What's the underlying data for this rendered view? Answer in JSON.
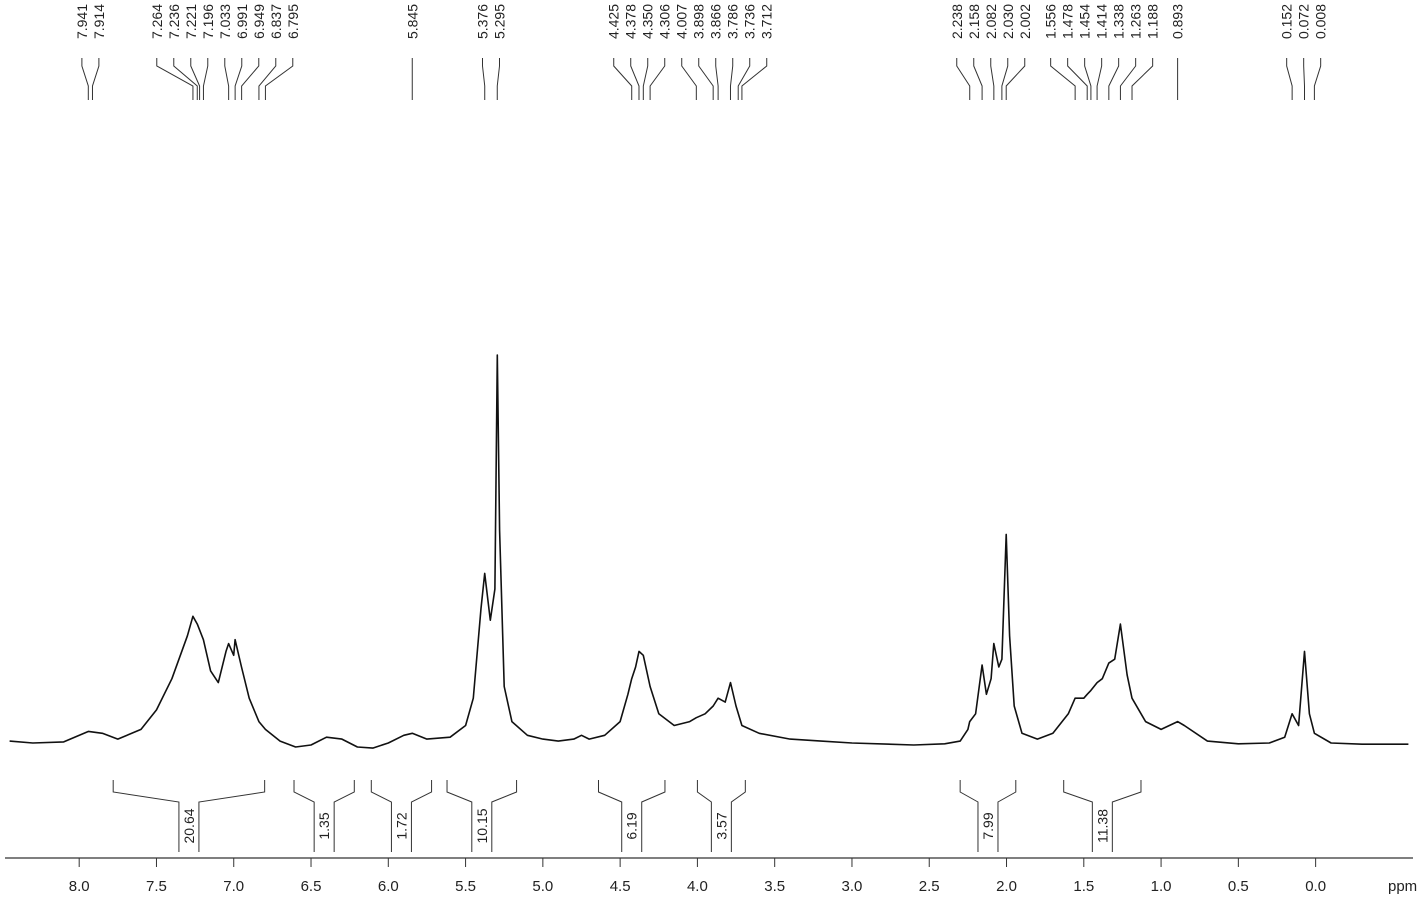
{
  "chart_data": {
    "type": "line",
    "x_label": "ppm",
    "xlim": [
      8.48,
      -0.63
    ],
    "ylim": [
      0,
      100
    ],
    "color": "#111111",
    "xticks": [
      {
        "value": 8,
        "label": "8.0"
      },
      7.5,
      {
        "value": 7,
        "label": "7.0"
      },
      6.5,
      {
        "value": 6,
        "label": "6.0"
      },
      5.5,
      {
        "value": 5,
        "label": "5.0"
      },
      4.5,
      {
        "value": 4,
        "label": "4.0"
      },
      3.5,
      {
        "value": 3,
        "label": "3.0"
      },
      2.5,
      {
        "value": 2,
        "label": "2.0"
      },
      1.5,
      {
        "value": 1,
        "label": "1.0"
      },
      0.5,
      {
        "value": 0,
        "label": "0.0"
      }
    ],
    "series": [
      {
        "x": [
          8.45,
          8.3,
          8.1,
          7.94,
          7.85,
          7.75,
          7.6,
          7.5,
          7.4,
          7.3,
          7.264,
          7.236,
          7.196,
          7.15,
          7.1,
          7.05,
          7.033,
          7.0,
          6.991,
          6.95,
          6.9,
          6.837,
          6.795,
          6.7,
          6.6,
          6.5,
          6.4,
          6.3,
          6.2,
          6.1,
          6.0,
          5.9,
          5.845,
          5.75,
          5.6,
          5.5,
          5.45,
          5.4,
          5.376,
          5.34,
          5.31,
          5.295,
          5.28,
          5.25,
          5.2,
          5.1,
          5.0,
          4.9,
          4.8,
          4.75,
          4.7,
          4.6,
          4.5,
          4.45,
          4.425,
          4.4,
          4.378,
          4.35,
          4.306,
          4.25,
          4.15,
          4.05,
          4.007,
          3.95,
          3.898,
          3.866,
          3.82,
          3.786,
          3.75,
          3.712,
          3.6,
          3.4,
          3.2,
          3.0,
          2.6,
          2.4,
          2.3,
          2.25,
          2.238,
          2.2,
          2.158,
          2.13,
          2.1,
          2.082,
          2.05,
          2.03,
          2.002,
          1.98,
          1.95,
          1.9,
          1.8,
          1.7,
          1.6,
          1.556,
          1.5,
          1.478,
          1.454,
          1.414,
          1.38,
          1.338,
          1.3,
          1.263,
          1.22,
          1.188,
          1.1,
          1.0,
          0.893,
          0.85,
          0.7,
          0.5,
          0.3,
          0.2,
          0.152,
          0.11,
          0.072,
          0.04,
          0.008,
          -0.1,
          -0.3,
          -0.6
        ],
        "values": [
          1,
          0.5,
          0.8,
          3.5,
          3,
          1.5,
          4,
          9,
          17,
          28,
          33,
          31,
          27,
          19,
          16,
          24,
          26,
          23,
          27,
          20,
          12,
          6,
          4,
          1,
          -0.5,
          0,
          2,
          1.5,
          -0.5,
          -0.8,
          0.5,
          2.5,
          3,
          1.5,
          2,
          5,
          12,
          35,
          44,
          32,
          40,
          100,
          55,
          15,
          6,
          2.5,
          1.5,
          1,
          1.5,
          2.5,
          1.5,
          2.5,
          6,
          13,
          17,
          20,
          24,
          23,
          15,
          8,
          5,
          6,
          7,
          8,
          10,
          12,
          11,
          16,
          10,
          5,
          3,
          1.5,
          1,
          0.5,
          0,
          0.3,
          1,
          4,
          6,
          8,
          20.5,
          13,
          17,
          26,
          20,
          22,
          54,
          28,
          10,
          3,
          1.5,
          3,
          8,
          12,
          12,
          13,
          14,
          16,
          17,
          21,
          22,
          31,
          18,
          12,
          6,
          4,
          6,
          5,
          1,
          0.3,
          0.5,
          2,
          8,
          5,
          24,
          8,
          3,
          0.5,
          0.2,
          0.2
        ]
      }
    ],
    "peak_labels": [
      {
        "value": 7.941,
        "label": "7.941"
      },
      {
        "value": 7.914,
        "label": "7.914"
      },
      {
        "value": 7.264,
        "label": "7.264"
      },
      {
        "value": 7.236,
        "label": "7.236"
      },
      {
        "value": 7.221,
        "label": "7.221"
      },
      {
        "value": 7.196,
        "label": "7.196"
      },
      {
        "value": 7.033,
        "label": "7.033"
      },
      {
        "value": 6.991,
        "label": "6.991"
      },
      {
        "value": 6.949,
        "label": "6.949"
      },
      {
        "value": 6.837,
        "label": "6.837"
      },
      {
        "value": 6.795,
        "label": "6.795"
      },
      {
        "value": 5.845,
        "label": "5.845"
      },
      {
        "value": 5.376,
        "label": "5.376"
      },
      {
        "value": 5.295,
        "label": "5.295"
      },
      {
        "value": 4.425,
        "label": "4.425"
      },
      {
        "value": 4.378,
        "label": "4.378"
      },
      {
        "value": 4.35,
        "label": "4.350"
      },
      {
        "value": 4.306,
        "label": "4.306"
      },
      {
        "value": 4.007,
        "label": "4.007"
      },
      {
        "value": 3.898,
        "label": "3.898"
      },
      {
        "value": 3.866,
        "label": "3.866"
      },
      {
        "value": 3.786,
        "label": "3.786"
      },
      {
        "value": 3.736,
        "label": "3.736"
      },
      {
        "value": 3.712,
        "label": "3.712"
      },
      {
        "value": 2.238,
        "label": "2.238"
      },
      {
        "value": 2.158,
        "label": "2.158"
      },
      {
        "value": 2.082,
        "label": "2.082"
      },
      {
        "value": 2.03,
        "label": "2.030"
      },
      {
        "value": 2.002,
        "label": "2.002"
      },
      {
        "value": 1.556,
        "label": "1.556"
      },
      {
        "value": 1.478,
        "label": "1.478"
      },
      {
        "value": 1.454,
        "label": "1.454"
      },
      {
        "value": 1.414,
        "label": "1.414"
      },
      {
        "value": 1.338,
        "label": "1.338"
      },
      {
        "value": 1.263,
        "label": "1.263"
      },
      {
        "value": 1.188,
        "label": "1.188"
      },
      {
        "value": 0.893,
        "label": "0.893"
      },
      {
        "value": 0.152,
        "label": "0.152"
      },
      {
        "value": 0.072,
        "label": "0.072"
      },
      {
        "value": 0.008,
        "label": "0.008"
      }
    ],
    "integrals": [
      {
        "from": 7.78,
        "to": 6.8,
        "value": 20.64
      },
      {
        "from": 6.61,
        "to": 6.22,
        "value": 1.35
      },
      {
        "from": 6.11,
        "to": 5.72,
        "value": 1.72
      },
      {
        "from": 5.62,
        "to": 5.17,
        "value": 10.15
      },
      {
        "from": 4.64,
        "to": 4.21,
        "value": 6.19
      },
      {
        "from": 4.0,
        "to": 3.69,
        "value": 3.57
      },
      {
        "from": 2.3,
        "to": 1.94,
        "value": 7.99
      },
      {
        "from": 1.63,
        "to": 1.13,
        "value": 11.38
      }
    ]
  }
}
